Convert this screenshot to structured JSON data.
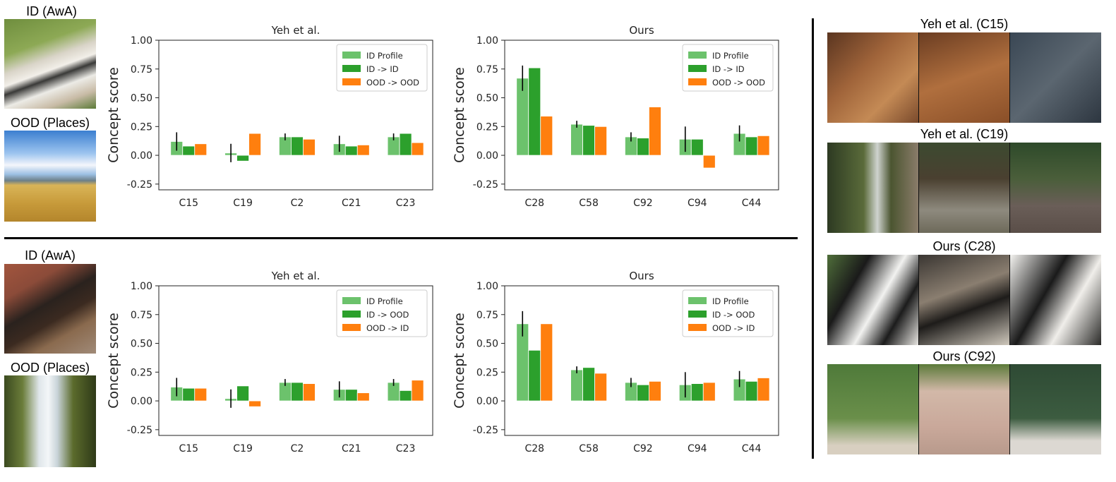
{
  "left_images": {
    "row1_id_caption": "ID (AwA)",
    "row1_ood_caption": "OOD (Places)",
    "row2_id_caption": "ID (AwA)",
    "row2_ood_caption": "OOD (Places)"
  },
  "right_strips": [
    {
      "title": "Yeh et al. (C15)"
    },
    {
      "title": "Yeh et al. (C19)"
    },
    {
      "title": "Ours (C28)"
    },
    {
      "title": "Ours (C92)"
    }
  ],
  "colors": {
    "id_profile": "#6cc26c",
    "green": "#2ca02c",
    "orange": "#ff7f0e"
  },
  "chart_data": [
    {
      "type": "bar",
      "title": "Yeh et al.",
      "ylabel": "Concept score",
      "ylim": [
        -0.3,
        1.0
      ],
      "yticks": [
        "1.00",
        "0.75",
        "0.50",
        "0.25",
        "0.00",
        "-0.25"
      ],
      "legend_position": "top-right",
      "categories": [
        "C15",
        "C19",
        "C2",
        "C21",
        "C23"
      ],
      "series": [
        {
          "name": "ID Profile",
          "values": [
            0.12,
            0.02,
            0.16,
            0.1,
            0.16
          ],
          "err": [
            0.08,
            0.08,
            0.03,
            0.07,
            0.03
          ]
        },
        {
          "name": "ID -> ID",
          "values": [
            0.08,
            -0.05,
            0.16,
            0.08,
            0.19
          ]
        },
        {
          "name": "OOD -> OOD",
          "values": [
            0.1,
            0.19,
            0.14,
            0.09,
            0.11
          ]
        }
      ]
    },
    {
      "type": "bar",
      "title": "Ours",
      "ylabel": "Concept score",
      "ylim": [
        -0.3,
        1.0
      ],
      "yticks": [
        "1.00",
        "0.75",
        "0.50",
        "0.25",
        "0.00",
        "-0.25"
      ],
      "legend_position": "top-right",
      "categories": [
        "C28",
        "C58",
        "C92",
        "C94",
        "C44"
      ],
      "series": [
        {
          "name": "ID Profile",
          "values": [
            0.67,
            0.27,
            0.16,
            0.14,
            0.19
          ],
          "err": [
            0.11,
            0.03,
            0.04,
            0.11,
            0.07
          ]
        },
        {
          "name": "ID -> ID",
          "values": [
            0.76,
            0.26,
            0.15,
            0.14,
            0.16
          ]
        },
        {
          "name": "OOD -> OOD",
          "values": [
            0.34,
            0.25,
            0.42,
            -0.11,
            0.17
          ]
        }
      ]
    },
    {
      "type": "bar",
      "title": "Yeh et al.",
      "ylabel": "Concept score",
      "ylim": [
        -0.3,
        1.0
      ],
      "yticks": [
        "1.00",
        "0.75",
        "0.50",
        "0.25",
        "0.00",
        "-0.25"
      ],
      "legend_position": "top-right",
      "categories": [
        "C15",
        "C19",
        "C2",
        "C21",
        "C23"
      ],
      "series": [
        {
          "name": "ID Profile",
          "values": [
            0.12,
            0.02,
            0.16,
            0.1,
            0.16
          ],
          "err": [
            0.08,
            0.08,
            0.03,
            0.07,
            0.03
          ]
        },
        {
          "name": "ID -> OOD",
          "values": [
            0.11,
            0.13,
            0.16,
            0.1,
            0.09
          ]
        },
        {
          "name": "OOD -> ID",
          "values": [
            0.11,
            -0.05,
            0.15,
            0.07,
            0.18
          ]
        }
      ]
    },
    {
      "type": "bar",
      "title": "Ours",
      "ylabel": "Concept score",
      "ylim": [
        -0.3,
        1.0
      ],
      "yticks": [
        "1.00",
        "0.75",
        "0.50",
        "0.25",
        "0.00",
        "-0.25"
      ],
      "legend_position": "top-right",
      "categories": [
        "C28",
        "C58",
        "C92",
        "C94",
        "C44"
      ],
      "series": [
        {
          "name": "ID Profile",
          "values": [
            0.67,
            0.27,
            0.16,
            0.14,
            0.19
          ],
          "err": [
            0.11,
            0.03,
            0.04,
            0.11,
            0.07
          ]
        },
        {
          "name": "ID -> OOD",
          "values": [
            0.44,
            0.29,
            0.14,
            0.15,
            0.17
          ]
        },
        {
          "name": "OOD -> ID",
          "values": [
            0.67,
            0.24,
            0.17,
            0.16,
            0.2
          ]
        }
      ]
    }
  ]
}
